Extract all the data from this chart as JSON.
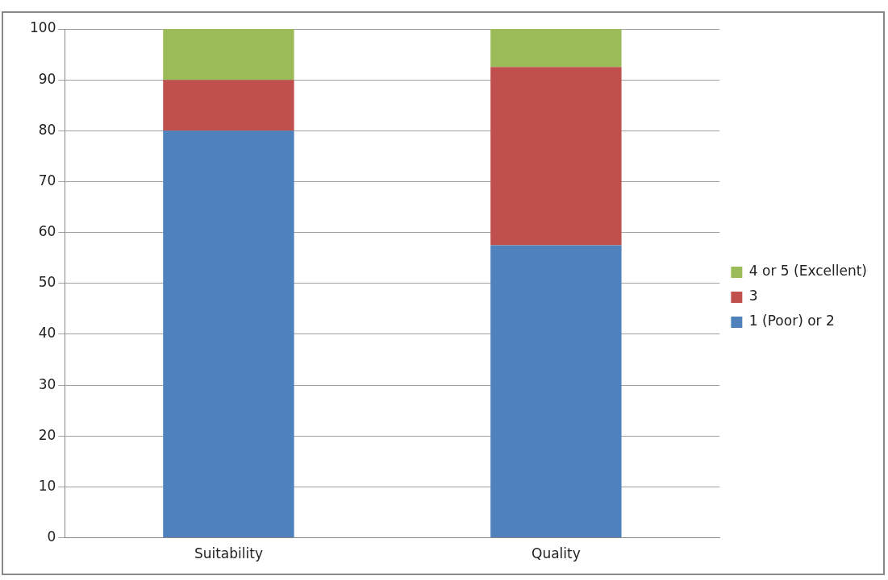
{
  "chart_data": {
    "type": "bar",
    "stacked": true,
    "categories": [
      "Suitability",
      "Quality"
    ],
    "series": [
      {
        "name": "1 (Poor) or 2",
        "color": "#4f81bd",
        "values": [
          80,
          57.5
        ]
      },
      {
        "name": "3",
        "color": "#c0504d",
        "values": [
          10,
          35
        ]
      },
      {
        "name": "4 or 5 (Excellent)",
        "color": "#9bbb59",
        "values": [
          10,
          7.5
        ]
      }
    ],
    "ylim": [
      0,
      100
    ],
    "yticks": [
      0,
      10,
      20,
      30,
      40,
      50,
      60,
      70,
      80,
      90,
      100
    ],
    "grid": "y",
    "legend": "right"
  }
}
